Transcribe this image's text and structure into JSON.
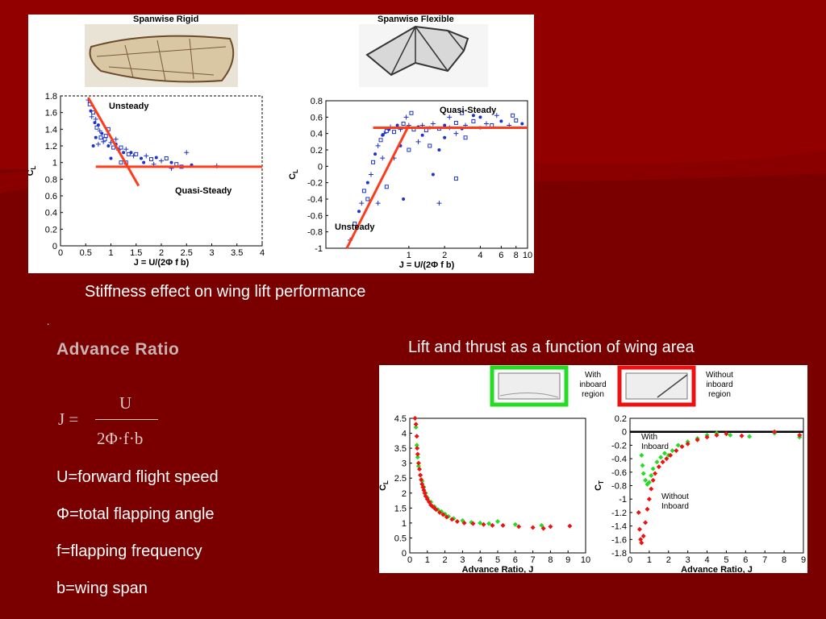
{
  "slide": {
    "caption_stiffness": "Stiffness effect on wing lift performance",
    "caption_area": "Lift and thrust as a function of wing area",
    "dot": ".",
    "advance_heading": "Advance Ratio",
    "formula": {
      "lhs": "J =",
      "numerator": "U",
      "denominator": "2Φ·f·b"
    },
    "definitions": [
      "U=forward flight speed",
      "Φ=total flapping angle",
      "f=flapping frequency",
      "b=wing span"
    ],
    "colors": {
      "background": "#7a0000",
      "series_blue": "#1a33cc",
      "fit_line": "#ff3b1a",
      "green": "#22dd22",
      "red": "#ee1111"
    }
  },
  "chart_data": [
    {
      "type": "scatter",
      "title": "Spanwise Rigid",
      "picture": "cicada-wing-photo",
      "xlabel": "J = U/(2Φ f b)",
      "ylabel": "C_L",
      "xlim": [
        0,
        4
      ],
      "ylim": [
        0,
        1.8
      ],
      "xticks": [
        0,
        0.5,
        1,
        1.5,
        2,
        2.5,
        3,
        3.5,
        4
      ],
      "yticks": [
        0,
        0.2,
        0.4,
        0.6,
        0.8,
        1,
        1.2,
        1.4,
        1.6,
        1.8
      ],
      "annotations": [
        "Unsteady",
        "Quasi-Steady"
      ],
      "lines": [
        {
          "x": [
            0.55,
            1.55
          ],
          "y": [
            1.78,
            0.72
          ]
        },
        {
          "x": [
            0.7,
            4
          ],
          "y": [
            0.95,
            0.95
          ]
        }
      ],
      "series": [
        {
          "values": [
            [
              0.55,
              1.75
            ],
            [
              0.58,
              1.7
            ],
            [
              0.6,
              1.62
            ],
            [
              0.62,
              1.55
            ],
            [
              0.65,
              1.6
            ],
            [
              0.68,
              1.48
            ],
            [
              0.7,
              1.52
            ],
            [
              0.72,
              1.42
            ],
            [
              0.75,
              1.45
            ],
            [
              0.78,
              1.38
            ],
            [
              0.8,
              1.3
            ],
            [
              0.82,
              1.35
            ],
            [
              0.85,
              1.25
            ],
            [
              0.88,
              1.28
            ],
            [
              0.7,
              1.3
            ],
            [
              0.75,
              1.22
            ],
            [
              0.9,
              1.32
            ],
            [
              0.95,
              1.2
            ],
            [
              1.0,
              1.24
            ],
            [
              1.05,
              1.18
            ],
            [
              1.1,
              1.22
            ],
            [
              1.15,
              1.15
            ],
            [
              1.2,
              1.18
            ],
            [
              1.25,
              1.12
            ],
            [
              1.3,
              1.16
            ],
            [
              1.35,
              1.1
            ],
            [
              1.4,
              1.12
            ],
            [
              1.45,
              1.08
            ],
            [
              1.5,
              1.1
            ],
            [
              1.6,
              1.05
            ],
            [
              1.7,
              1.08
            ],
            [
              1.8,
              1.04
            ],
            [
              1.9,
              1.06
            ],
            [
              2.0,
              1.02
            ],
            [
              2.1,
              1.05
            ],
            [
              2.2,
              1.0
            ],
            [
              2.5,
              1.12
            ],
            [
              2.3,
              0.98
            ],
            [
              2.6,
              0.97
            ],
            [
              2.2,
              0.93
            ],
            [
              1.2,
              1.0
            ],
            [
              1.0,
              1.05
            ],
            [
              1.1,
              1.28
            ],
            [
              0.95,
              1.4
            ],
            [
              0.65,
              1.2
            ],
            [
              3.1,
              0.96
            ],
            [
              1.3,
              1.0
            ],
            [
              1.65,
              1.0
            ],
            [
              1.85,
              0.98
            ],
            [
              2.4,
              0.95
            ]
          ]
        }
      ]
    },
    {
      "type": "scatter",
      "title": "Spanwise Flexible",
      "picture": "bat-wing-drawing",
      "xlabel": "J = U/(2Φ f b)",
      "ylabel": "C_L",
      "xscale": "log",
      "xlim": [
        0.2,
        10
      ],
      "ylim": [
        -1,
        0.8
      ],
      "xticks": [
        1,
        2,
        4,
        6,
        8,
        10
      ],
      "yticks": [
        -1,
        -0.8,
        -0.6,
        -0.4,
        -0.2,
        0,
        0.2,
        0.4,
        0.6,
        0.8
      ],
      "annotations": [
        "Quasi-Steady",
        "Unsteady"
      ],
      "lines": [
        {
          "x": [
            0.3,
            1.0
          ],
          "y": [
            -1.0,
            0.5
          ]
        },
        {
          "x": [
            0.5,
            10
          ],
          "y": [
            0.47,
            0.47
          ]
        }
      ],
      "series": [
        {
          "values": [
            [
              0.32,
              -0.9
            ],
            [
              0.35,
              -0.7
            ],
            [
              0.38,
              -0.55
            ],
            [
              0.4,
              -0.45
            ],
            [
              0.42,
              -0.3
            ],
            [
              0.45,
              -0.2
            ],
            [
              0.48,
              -0.1
            ],
            [
              0.5,
              0.05
            ],
            [
              0.52,
              0.15
            ],
            [
              0.55,
              0.25
            ],
            [
              0.58,
              0.32
            ],
            [
              0.6,
              0.38
            ],
            [
              0.62,
              0.4
            ],
            [
              0.65,
              0.43
            ],
            [
              0.68,
              0.45
            ],
            [
              0.7,
              0.48
            ],
            [
              0.75,
              0.42
            ],
            [
              0.8,
              0.5
            ],
            [
              0.85,
              0.45
            ],
            [
              0.9,
              0.52
            ],
            [
              0.95,
              0.47
            ],
            [
              1.0,
              0.5
            ],
            [
              1.1,
              0.45
            ],
            [
              1.2,
              0.48
            ],
            [
              1.3,
              0.5
            ],
            [
              1.4,
              0.44
            ],
            [
              1.5,
              0.47
            ],
            [
              1.6,
              0.52
            ],
            [
              1.8,
              0.46
            ],
            [
              2.0,
              0.5
            ],
            [
              2.2,
              0.47
            ],
            [
              2.5,
              0.53
            ],
            [
              2.8,
              0.46
            ],
            [
              3.0,
              0.5
            ],
            [
              3.5,
              0.55
            ],
            [
              4.0,
              0.47
            ],
            [
              4.5,
              0.52
            ],
            [
              5.0,
              0.5
            ],
            [
              6.0,
              0.55
            ],
            [
              7.0,
              0.5
            ],
            [
              8.0,
              0.56
            ],
            [
              9.0,
              0.52
            ],
            [
              0.55,
              -0.45
            ],
            [
              0.65,
              -0.25
            ],
            [
              0.9,
              -0.4
            ],
            [
              1.2,
              0.3
            ],
            [
              1.5,
              0.25
            ],
            [
              2.0,
              0.35
            ],
            [
              0.75,
              0.1
            ],
            [
              0.45,
              -0.4
            ],
            [
              1.8,
              0.2
            ],
            [
              2.5,
              0.4
            ],
            [
              3.0,
              0.35
            ],
            [
              1.6,
              -0.1
            ],
            [
              1.8,
              -0.45
            ],
            [
              2.5,
              -0.15
            ],
            [
              0.85,
              0.25
            ],
            [
              0.6,
              0.1
            ],
            [
              1.0,
              0.2
            ],
            [
              1.3,
              0.38
            ],
            [
              2.2,
              0.6
            ],
            [
              2.8,
              0.65
            ],
            [
              4.0,
              0.6
            ],
            [
              5.5,
              0.62
            ],
            [
              7.5,
              0.62
            ],
            [
              3.5,
              0.62
            ],
            [
              0.95,
              0.6
            ],
            [
              1.05,
              0.65
            ]
          ]
        }
      ]
    },
    {
      "type": "scatter",
      "ylabel": "C_L",
      "xlabel": "Advance Ratio, J",
      "xlim": [
        0,
        10
      ],
      "ylim": [
        0,
        4.5
      ],
      "xticks": [
        0,
        1,
        2,
        3,
        4,
        5,
        6,
        7,
        8,
        9,
        10
      ],
      "yticks": [
        0,
        0.5,
        1,
        1.5,
        2,
        2.5,
        3,
        3.5,
        4,
        4.5
      ],
      "legend_pictures": [
        {
          "label": "With inboard region",
          "color": "green"
        },
        {
          "label": "Without inboard region",
          "color": "red"
        }
      ],
      "series": [
        {
          "color": "green",
          "values": [
            [
              0.35,
              4.2
            ],
            [
              0.4,
              3.6
            ],
            [
              0.45,
              3.2
            ],
            [
              0.5,
              2.9
            ],
            [
              0.6,
              2.6
            ],
            [
              0.7,
              2.4
            ],
            [
              0.8,
              2.2
            ],
            [
              0.9,
              2.0
            ],
            [
              1.0,
              1.85
            ],
            [
              1.2,
              1.7
            ],
            [
              1.4,
              1.55
            ],
            [
              1.6,
              1.45
            ],
            [
              1.8,
              1.38
            ],
            [
              2.0,
              1.3
            ],
            [
              2.2,
              1.22
            ],
            [
              2.5,
              1.15
            ],
            [
              3.0,
              1.08
            ],
            [
              3.5,
              1.02
            ],
            [
              4.0,
              1.0
            ],
            [
              4.5,
              0.98
            ],
            [
              5.0,
              1.05
            ],
            [
              6.0,
              0.95
            ],
            [
              7.5,
              0.92
            ]
          ]
        },
        {
          "color": "red",
          "values": [
            [
              0.3,
              4.5
            ],
            [
              0.35,
              4.3
            ],
            [
              0.4,
              3.9
            ],
            [
              0.42,
              3.5
            ],
            [
              0.45,
              3.3
            ],
            [
              0.5,
              3.0
            ],
            [
              0.55,
              2.8
            ],
            [
              0.6,
              2.6
            ],
            [
              0.65,
              2.45
            ],
            [
              0.7,
              2.3
            ],
            [
              0.75,
              2.2
            ],
            [
              0.8,
              2.1
            ],
            [
              0.85,
              2.0
            ],
            [
              0.9,
              1.9
            ],
            [
              1.0,
              1.8
            ],
            [
              1.1,
              1.7
            ],
            [
              1.2,
              1.6
            ],
            [
              1.3,
              1.55
            ],
            [
              1.4,
              1.5
            ],
            [
              1.5,
              1.45
            ],
            [
              1.7,
              1.35
            ],
            [
              1.9,
              1.28
            ],
            [
              2.1,
              1.2
            ],
            [
              2.4,
              1.12
            ],
            [
              2.7,
              1.05
            ],
            [
              3.1,
              1.0
            ],
            [
              3.6,
              0.98
            ],
            [
              4.2,
              0.95
            ],
            [
              4.7,
              0.92
            ],
            [
              5.3,
              0.92
            ],
            [
              6.2,
              0.88
            ],
            [
              7.0,
              0.85
            ],
            [
              7.6,
              0.82
            ],
            [
              8.0,
              0.88
            ],
            [
              9.1,
              0.9
            ]
          ]
        }
      ]
    },
    {
      "type": "scatter",
      "ylabel": "C_T",
      "xlabel": "Advance Ratio, J",
      "xlim": [
        0,
        9
      ],
      "ylim": [
        -1.8,
        0.2
      ],
      "xticks": [
        0,
        1,
        2,
        3,
        4,
        5,
        6,
        7,
        8,
        9
      ],
      "yticks": [
        0.2,
        0,
        -0.2,
        -0.4,
        -0.6,
        -0.8,
        -1,
        -1.2,
        -1.4,
        -1.6,
        -1.8
      ],
      "annotations": [
        "With",
        "Inboard",
        "Without",
        "Inboard"
      ],
      "series": [
        {
          "color": "green",
          "values": [
            [
              0.6,
              -0.35
            ],
            [
              0.65,
              -0.5
            ],
            [
              0.7,
              -0.62
            ],
            [
              0.8,
              -0.72
            ],
            [
              0.9,
              -0.78
            ],
            [
              1.0,
              -0.75
            ],
            [
              1.1,
              -0.65
            ],
            [
              1.2,
              -0.55
            ],
            [
              1.4,
              -0.45
            ],
            [
              1.6,
              -0.38
            ],
            [
              1.8,
              -0.32
            ],
            [
              2.0,
              -0.35
            ],
            [
              2.2,
              -0.28
            ],
            [
              2.5,
              -0.2
            ],
            [
              3.0,
              -0.15
            ],
            [
              3.5,
              -0.1
            ],
            [
              4.0,
              -0.05
            ],
            [
              4.5,
              -0.02
            ],
            [
              5.2,
              -0.05
            ],
            [
              6.2,
              -0.07
            ],
            [
              7.5,
              -0.02
            ],
            [
              8.8,
              -0.08
            ]
          ]
        },
        {
          "color": "red",
          "values": [
            [
              0.45,
              -1.2
            ],
            [
              0.5,
              -1.45
            ],
            [
              0.55,
              -1.6
            ],
            [
              0.6,
              -1.65
            ],
            [
              0.7,
              -1.55
            ],
            [
              0.8,
              -1.35
            ],
            [
              0.9,
              -1.15
            ],
            [
              1.0,
              -1.0
            ],
            [
              1.1,
              -0.85
            ],
            [
              1.2,
              -0.72
            ],
            [
              1.3,
              -0.62
            ],
            [
              1.5,
              -0.52
            ],
            [
              1.7,
              -0.45
            ],
            [
              1.9,
              -0.4
            ],
            [
              2.1,
              -0.35
            ],
            [
              2.4,
              -0.28
            ],
            [
              2.7,
              -0.22
            ],
            [
              3.0,
              -0.18
            ],
            [
              3.5,
              -0.12
            ],
            [
              4.0,
              -0.08
            ],
            [
              4.5,
              -0.05
            ],
            [
              5.0,
              -0.03
            ],
            [
              5.8,
              -0.06
            ],
            [
              7.5,
              0.0
            ],
            [
              8.8,
              -0.05
            ]
          ]
        }
      ]
    }
  ]
}
